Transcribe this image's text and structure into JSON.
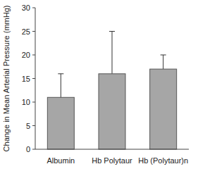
{
  "chart_data": {
    "type": "bar",
    "y_label": "Change in Mean Arterial Pressure (mmHg)",
    "categories": [
      "Albumin",
      "Hb Polytaur",
      "Hb (Polytaur)n"
    ],
    "values": [
      11,
      16,
      17
    ],
    "errors": [
      5,
      9,
      3
    ],
    "color": "#a6a6a6",
    "ylim": [
      0,
      30
    ],
    "yticks": [
      0,
      5,
      10,
      15,
      20,
      25,
      30
    ],
    "grid": false
  }
}
